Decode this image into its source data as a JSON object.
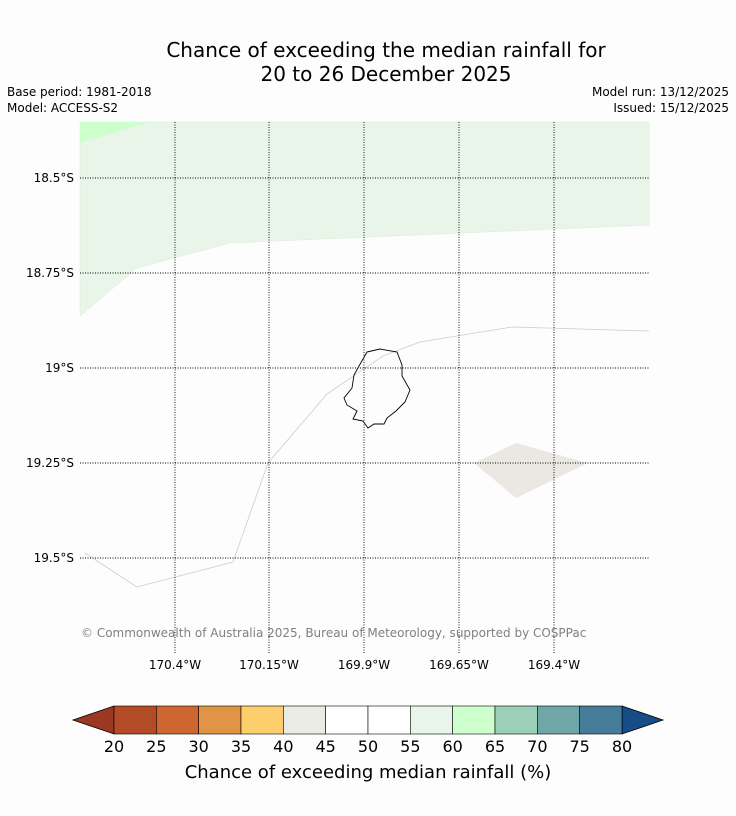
{
  "title": {
    "line1": "Chance of exceeding the median rainfall for",
    "line2": "20 to 26 December 2025"
  },
  "meta": {
    "base_period": "Base period: 1981-2018",
    "model": "Model: ACCESS-S2",
    "model_run": "Model run: 13/12/2025",
    "issued": "Issued: 15/12/2025"
  },
  "map": {
    "lat_labels": [
      "18.5°S",
      "18.75°S",
      "19°S",
      "19.25°S",
      "19.5°S"
    ],
    "lon_labels": [
      "170.4°W",
      "170.15°W",
      "169.9°W",
      "169.65°W",
      "169.4°W"
    ],
    "copyright": "© Commonwealth of Australia 2025, Bureau of Meteorology, supported by COSPPac",
    "regions": [
      {
        "name": "55-60 band",
        "color": "#e9f5e9"
      },
      {
        "name": "60-65 corner",
        "color": "#ccffcc"
      },
      {
        "name": "40-45 patch",
        "color": "#ebe8e3"
      }
    ]
  },
  "colorbar": {
    "title": "Chance of exceeding median rainfall (%)",
    "ticks": [
      "20",
      "25",
      "30",
      "35",
      "40",
      "45",
      "50",
      "55",
      "60",
      "65",
      "70",
      "75",
      "80"
    ],
    "under_color": "#9b3822",
    "over_color": "#174d86",
    "colors": [
      "#b34b26",
      "#ce6631",
      "#e19445",
      "#fcce6c",
      "#ebebe6",
      "#ffffff",
      "#ffffff",
      "#e9f5e9",
      "#ccffcc",
      "#9ccfb8",
      "#70a7a6",
      "#447c9a"
    ]
  }
}
